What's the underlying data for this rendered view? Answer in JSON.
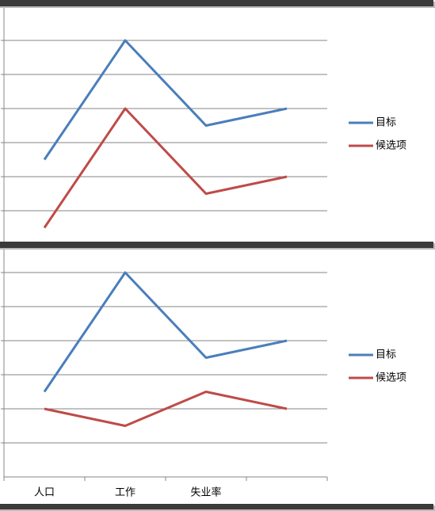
{
  "chart_data": [
    {
      "type": "line",
      "ylim": [
        0,
        7
      ],
      "yticks": [
        1,
        2,
        3,
        4,
        5,
        6
      ],
      "grid": true,
      "series": [
        {
          "name": "目标",
          "color": "#4a7ebb",
          "values": [
            2.5,
            6,
            3.5,
            4
          ]
        },
        {
          "name": "候选项",
          "color": "#be4b48",
          "values": [
            0.5,
            4,
            1.5,
            2
          ]
        }
      ]
    },
    {
      "type": "line",
      "ylim": [
        0,
        7
      ],
      "yticks": [
        1,
        2,
        3,
        4,
        5,
        6
      ],
      "grid": true,
      "categories": [
        "人口",
        "工作",
        "失业率",
        null
      ],
      "series": [
        {
          "name": "目标",
          "color": "#4a7ebb",
          "values": [
            2.5,
            6,
            3.5,
            4
          ]
        },
        {
          "name": "候选项",
          "color": "#be4b48",
          "values": [
            2,
            1.5,
            2.5,
            2
          ]
        }
      ]
    }
  ]
}
